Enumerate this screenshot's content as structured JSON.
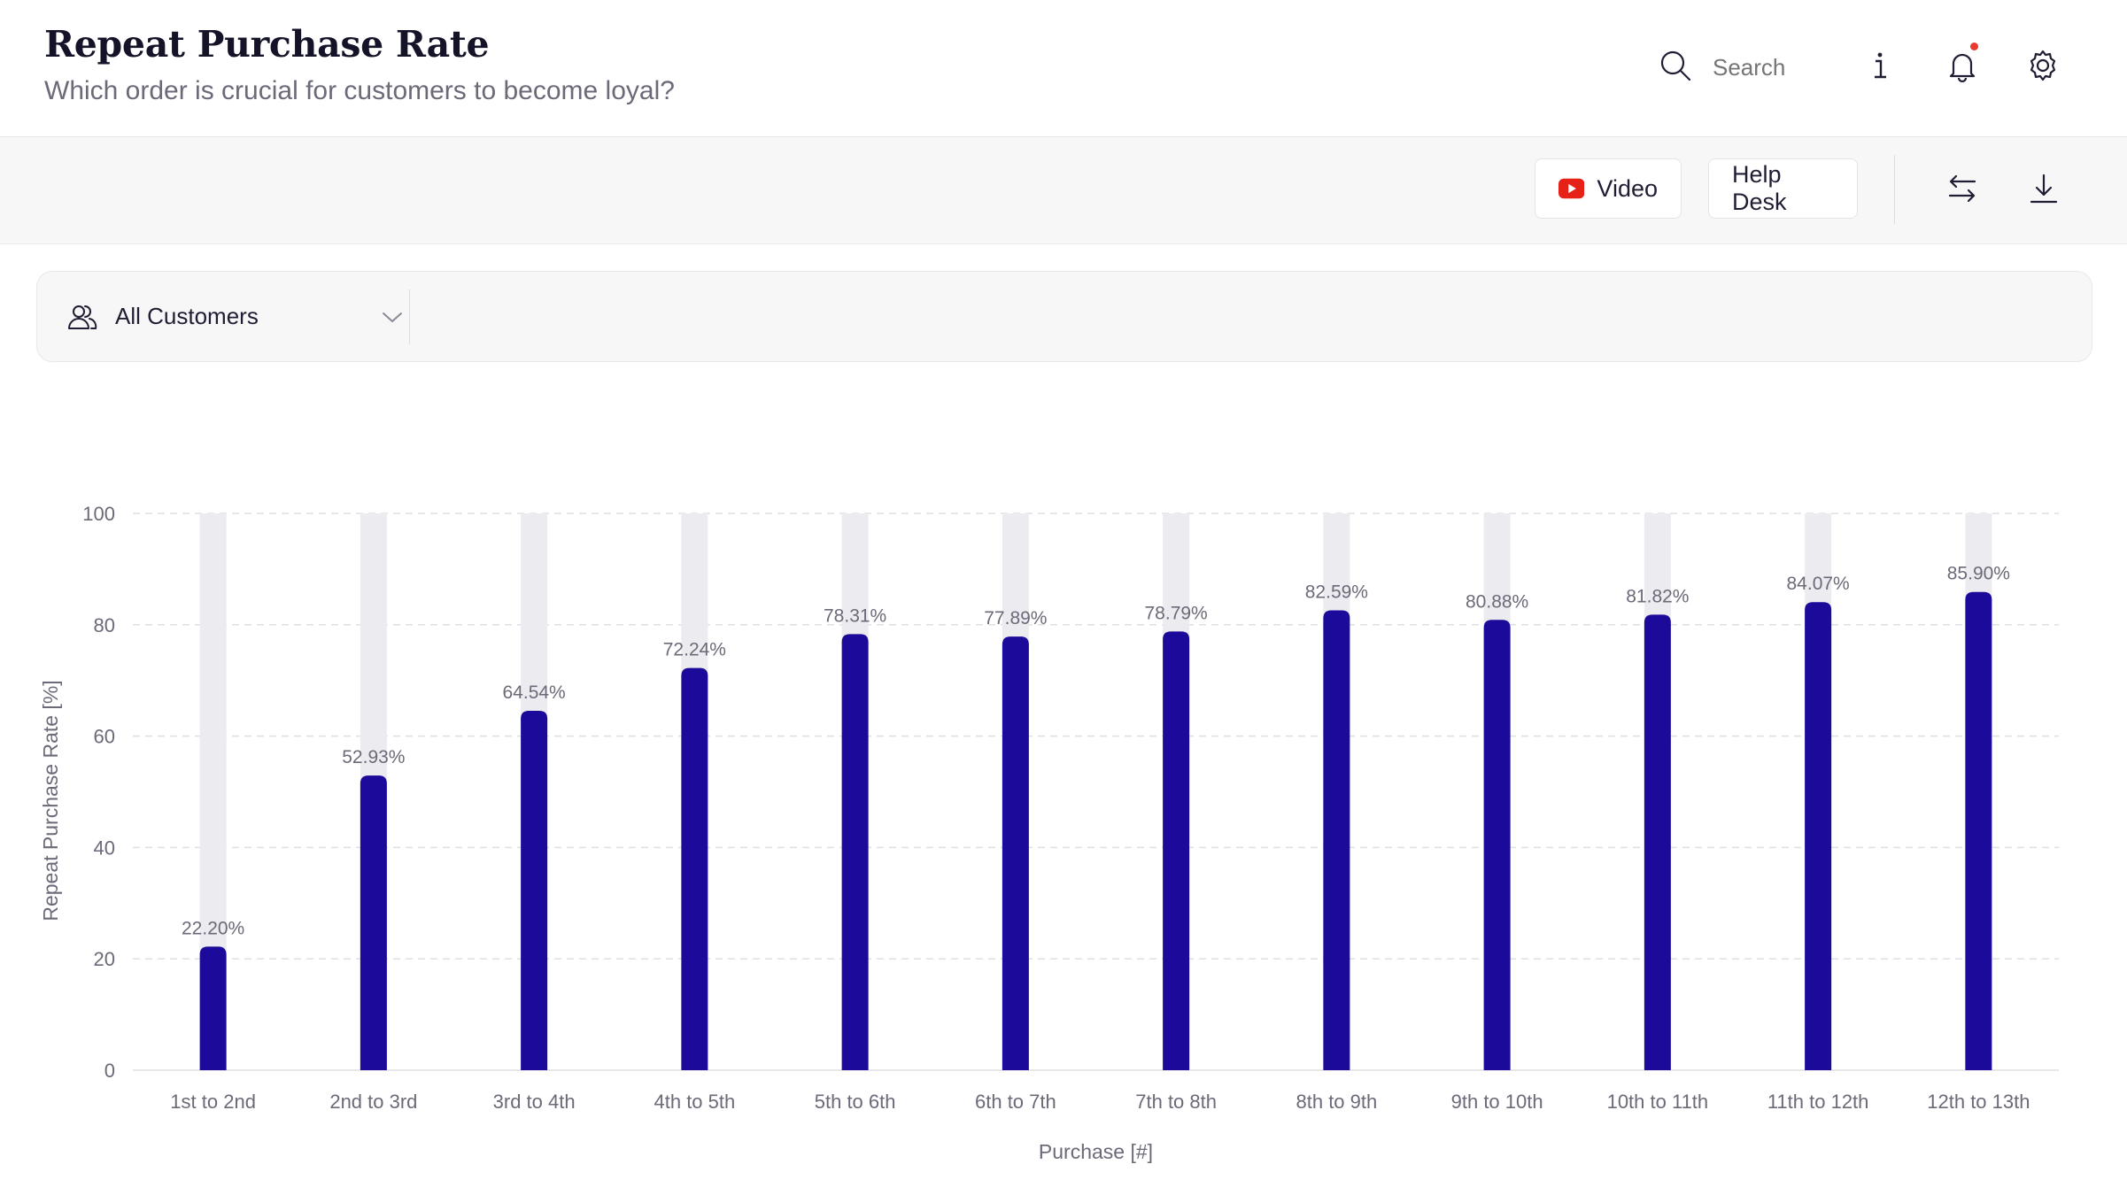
{
  "header": {
    "title": "Repeat Purchase Rate",
    "subtitle": "Which order is crucial for customers to become loyal?",
    "search_placeholder": "Search"
  },
  "toolbar": {
    "video_label": "Video",
    "helpdesk_label": "Help Desk"
  },
  "filter": {
    "segment_label": "All Customers"
  },
  "colors": {
    "bar": "#1c0b9a",
    "track": "#ebebf0",
    "video_red": "#e62117",
    "notification": "#e83b30"
  },
  "chart_data": {
    "type": "bar",
    "title": "",
    "xlabel": "Purchase [#]",
    "ylabel": "Repeat Purchase Rate [%]",
    "ylim": [
      0,
      100
    ],
    "yticks": [
      0,
      20,
      40,
      60,
      80,
      100
    ],
    "grid": true,
    "categories": [
      "1st to 2nd",
      "2nd to 3rd",
      "3rd to 4th",
      "4th to 5th",
      "5th to 6th",
      "6th to 7th",
      "7th to 8th",
      "8th to 9th",
      "9th to 10th",
      "10th to 11th",
      "11th to 12th",
      "12th to 13th"
    ],
    "values": [
      22.2,
      52.93,
      64.54,
      72.24,
      78.31,
      77.89,
      78.79,
      82.59,
      80.88,
      81.82,
      84.07,
      85.9
    ],
    "data_labels": [
      "22.20%",
      "52.93%",
      "64.54%",
      "72.24%",
      "78.31%",
      "77.89%",
      "78.79%",
      "82.59%",
      "80.88%",
      "81.82%",
      "84.07%",
      "85.90%"
    ]
  }
}
